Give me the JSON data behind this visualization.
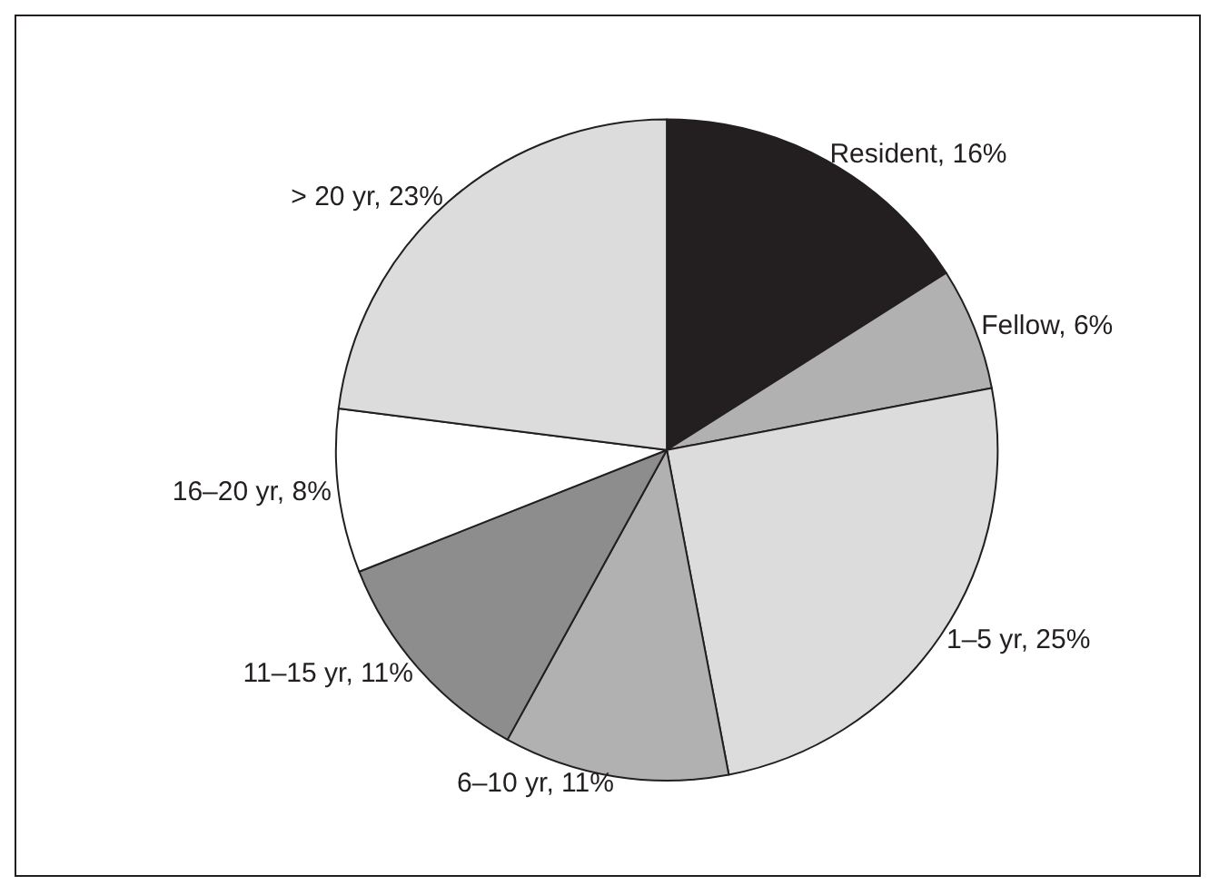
{
  "chart_data": {
    "type": "pie",
    "categories": [
      "Resident",
      "Fellow",
      "1–5 yr",
      "6–10 yr",
      "11–15 yr",
      "16–20 yr",
      "> 20 yr"
    ],
    "values": [
      16,
      6,
      25,
      11,
      11,
      8,
      23
    ],
    "value_labels": [
      "16%",
      "6%",
      "25%",
      "11%",
      "11%",
      "8%",
      "23%"
    ],
    "colors": [
      "#231f20",
      "#b1b1b1",
      "#dcdcdc",
      "#b1b1b1",
      "#8d8d8d",
      "#ffffff",
      "#dcdcdc"
    ],
    "legend": false
  }
}
